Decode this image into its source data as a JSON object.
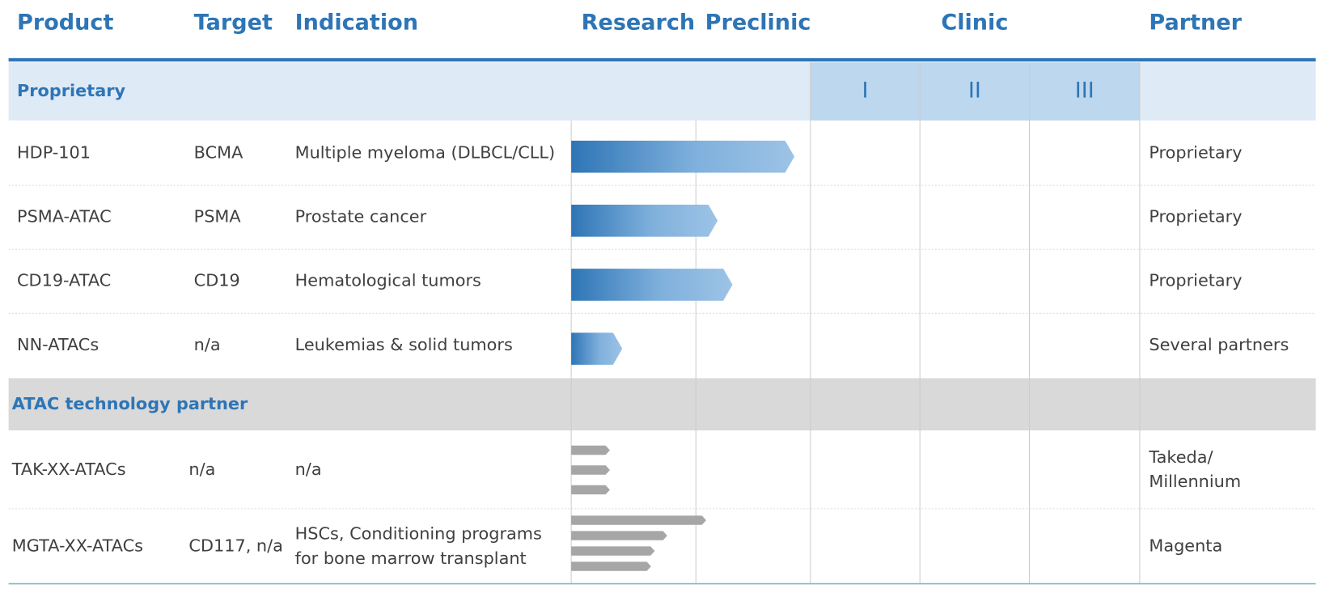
{
  "header": {
    "product": "Product",
    "target": "Target",
    "indication": "Indication",
    "stages": [
      "Research",
      "Preclinic"
    ],
    "clinic": "Clinic",
    "phases": [
      "I",
      "II",
      "III"
    ],
    "partner": "Partner"
  },
  "sections": [
    {
      "title": "Proprietary",
      "style": "gradient",
      "rows": [
        {
          "product": "HDP-101",
          "target": "BCMA",
          "indication": [
            "Multiple myeloma (DLBCL/CLL)"
          ],
          "partner": [
            "Proprietary"
          ],
          "progress": [
            1.86
          ]
        },
        {
          "product": "PSMA-ATAC",
          "target": "PSMA",
          "indication": [
            "Prostate cancer"
          ],
          "partner": [
            "Proprietary"
          ],
          "progress": [
            1.19
          ]
        },
        {
          "product": "CD19-ATAC",
          "target": "CD19",
          "indication": [
            "Hematological tumors"
          ],
          "partner": [
            "Proprietary"
          ],
          "progress": [
            1.32
          ]
        },
        {
          "product": "NN-ATACs",
          "target": "n/a",
          "indication": [
            "Leukemias & solid tumors"
          ],
          "partner": [
            "Several partners"
          ],
          "progress": [
            0.41
          ]
        }
      ]
    },
    {
      "title": "ATAC technology partner",
      "style": "gray",
      "rows": [
        {
          "product": "TAK-XX-ATACs",
          "target": "n/a",
          "indication": [
            "n/a"
          ],
          "partner": [
            "Takeda/",
            "Millennium"
          ],
          "progress": [
            0.31,
            0.31,
            0.31
          ]
        },
        {
          "product": "MGTA-XX-ATACs",
          "target": "CD117, n/a",
          "indication": [
            "HSCs, Conditioning programs",
            "for bone marrow transplant"
          ],
          "partner": [
            "Magenta"
          ],
          "progress": [
            1.09,
            0.77,
            0.67,
            0.64
          ]
        }
      ]
    }
  ]
}
